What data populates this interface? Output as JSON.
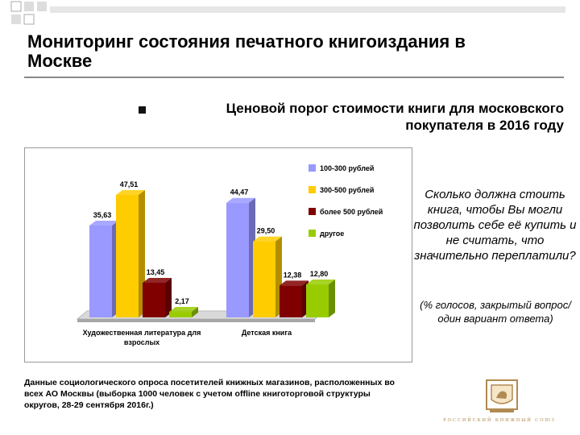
{
  "slide": {
    "title": "Мониторинг состояния печатного книгоиздания в Москве",
    "subtitle": "Ценовой порог стоимости книги для московского покупателя в 2016 году",
    "question": "Сколько должна стоить книга, чтобы Вы могли позволить себе её купить и не считать, что значительно переплатили?",
    "note": "(% голосов, закрытый вопрос/один вариант ответа)",
    "source": "Данные социологического опроса посетителей книжных магазинов, расположенных во всех АО Москвы (выборка 1000 человек с учетом offline книготорговой структуры округов, 28-29 сентября 2016г.)",
    "logo_caption": "РОССИЙСКИЙ КНИЖНЫЙ СОЮЗ",
    "colors": {
      "accent": "#8a8a8a"
    }
  },
  "chart_data": {
    "type": "bar",
    "categories": [
      "Художественная литература для взрослых",
      "Детская книга"
    ],
    "series": [
      {
        "name": "100-300 рублей",
        "color": "#9999ff",
        "values": [
          35.63,
          44.47
        ]
      },
      {
        "name": "300-500 рублей",
        "color": "#ffcc00",
        "values": [
          47.51,
          29.5
        ]
      },
      {
        "name": "более 500 рублей",
        "color": "#800000",
        "values": [
          13.45,
          12.38
        ]
      },
      {
        "name": "другое",
        "color": "#99cc00",
        "values": [
          2.17,
          12.8
        ]
      }
    ],
    "data_labels": [
      [
        "35,63",
        "47,51",
        "13,45",
        "2,17"
      ],
      [
        "44,47",
        "29,50",
        "12,38",
        "12,80"
      ]
    ],
    "ylim": [
      0,
      50
    ],
    "grid": false,
    "legend": "top-right"
  }
}
